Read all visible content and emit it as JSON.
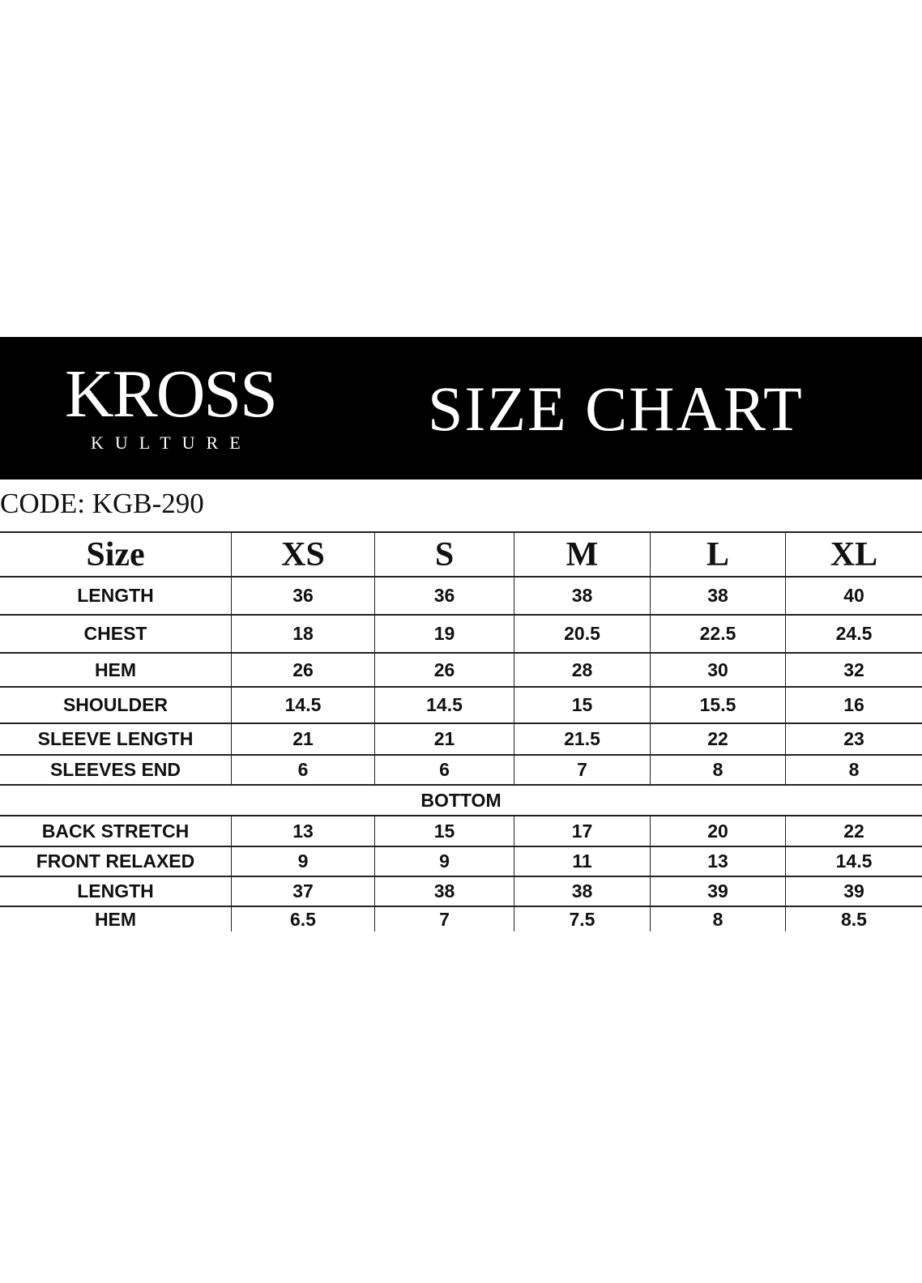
{
  "header": {
    "logo_text": "KROSS KULTURE",
    "logo_main": "KROSS",
    "logo_sub": "KULTURE",
    "title": "SIZE CHART",
    "band_color": "#000000"
  },
  "code_label": "CODE: KGB-290",
  "table": {
    "columns": [
      "Size",
      "XS",
      "S",
      "M",
      "L",
      "XL"
    ],
    "top_rows": [
      {
        "label": "LENGTH",
        "values": [
          "36",
          "36",
          "38",
          "38",
          "40"
        ]
      },
      {
        "label": "CHEST",
        "values": [
          "18",
          "19",
          "20.5",
          "22.5",
          "24.5"
        ]
      },
      {
        "label": "HEM",
        "values": [
          "26",
          "26",
          "28",
          "30",
          "32"
        ]
      },
      {
        "label": "SHOULDER",
        "values": [
          "14.5",
          "14.5",
          "15",
          "15.5",
          "16"
        ]
      },
      {
        "label": "SLEEVE LENGTH",
        "values": [
          "21",
          "21",
          "21.5",
          "22",
          "23"
        ]
      },
      {
        "label": "SLEEVES END",
        "values": [
          "6",
          "6",
          "7",
          "8",
          "8"
        ]
      }
    ],
    "section_label": "BOTTOM",
    "bottom_rows": [
      {
        "label": "BACK STRETCH",
        "values": [
          "13",
          "15",
          "17",
          "20",
          "22"
        ]
      },
      {
        "label": "FRONT RELAXED",
        "values": [
          "9",
          "9",
          "11",
          "13",
          "14.5"
        ]
      },
      {
        "label": "LENGTH",
        "values": [
          "37",
          "38",
          "38",
          "39",
          "39"
        ]
      },
      {
        "label": "HEM",
        "values": [
          "6.5",
          "7",
          "7.5",
          "8",
          "8.5"
        ]
      }
    ]
  }
}
